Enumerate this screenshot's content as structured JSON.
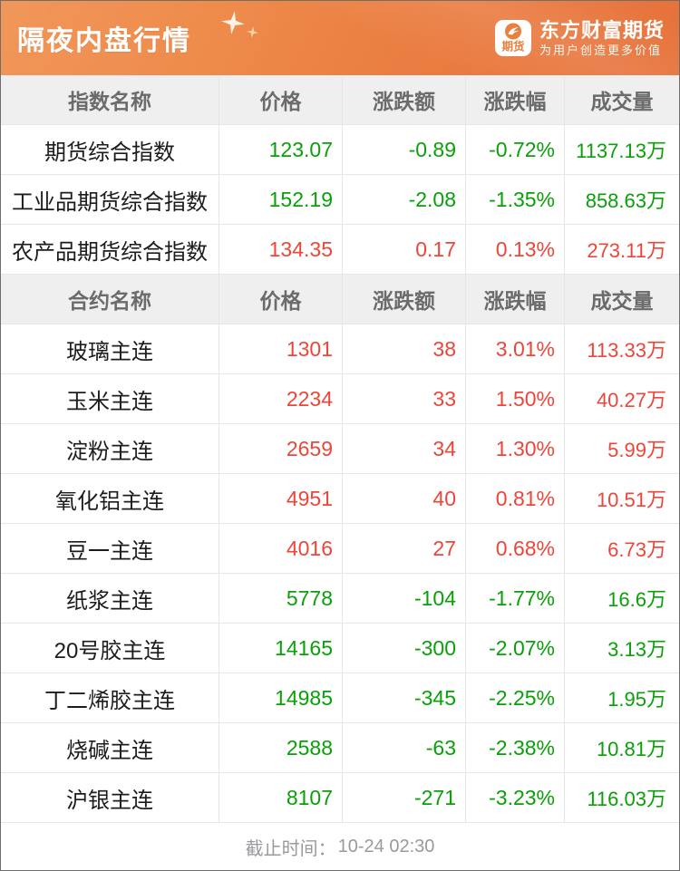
{
  "page": {
    "title": "隔夜内盘行情",
    "brand": {
      "name": "东方财富期货",
      "slogan": "为用户创造更多价值",
      "badge_text": "期货"
    },
    "footer": {
      "label": "截止时间：",
      "time": "10-24 02:30"
    }
  },
  "colors": {
    "up": "#ee4539",
    "down": "#09a009",
    "header_orange_start": "#f1975a",
    "header_orange_end": "#e6713a",
    "table_head_bg": "#efefef"
  },
  "icons": {
    "brand_badge": "futures-app-logo",
    "decor": "sparkle-stars"
  },
  "index_table": {
    "columns": [
      "指数名称",
      "价格",
      "涨跌额",
      "涨跌幅",
      "成交量"
    ],
    "rows": [
      {
        "name": "期货综合指数",
        "price": "123.07",
        "change": "-0.89",
        "pct": "-0.72%",
        "volume": "1137.13万",
        "trend": "down"
      },
      {
        "name": "工业品期货综合指数",
        "price": "152.19",
        "change": "-2.08",
        "pct": "-1.35%",
        "volume": "858.63万",
        "trend": "down"
      },
      {
        "name": "农产品期货综合指数",
        "price": "134.35",
        "change": "0.17",
        "pct": "0.13%",
        "volume": "273.11万",
        "trend": "up"
      }
    ]
  },
  "contract_table": {
    "columns": [
      "合约名称",
      "价格",
      "涨跌额",
      "涨跌幅",
      "成交量"
    ],
    "rows": [
      {
        "name": "玻璃主连",
        "price": "1301",
        "change": "38",
        "pct": "3.01%",
        "volume": "113.33万",
        "trend": "up"
      },
      {
        "name": "玉米主连",
        "price": "2234",
        "change": "33",
        "pct": "1.50%",
        "volume": "40.27万",
        "trend": "up"
      },
      {
        "name": "淀粉主连",
        "price": "2659",
        "change": "34",
        "pct": "1.30%",
        "volume": "5.99万",
        "trend": "up"
      },
      {
        "name": "氧化铝主连",
        "price": "4951",
        "change": "40",
        "pct": "0.81%",
        "volume": "10.51万",
        "trend": "up"
      },
      {
        "name": "豆一主连",
        "price": "4016",
        "change": "27",
        "pct": "0.68%",
        "volume": "6.73万",
        "trend": "up"
      },
      {
        "name": "纸浆主连",
        "price": "5778",
        "change": "-104",
        "pct": "-1.77%",
        "volume": "16.6万",
        "trend": "down"
      },
      {
        "name": "20号胶主连",
        "price": "14165",
        "change": "-300",
        "pct": "-2.07%",
        "volume": "3.13万",
        "trend": "down"
      },
      {
        "name": "丁二烯胶主连",
        "price": "14985",
        "change": "-345",
        "pct": "-2.25%",
        "volume": "1.95万",
        "trend": "down"
      },
      {
        "name": "烧碱主连",
        "price": "2588",
        "change": "-63",
        "pct": "-2.38%",
        "volume": "10.81万",
        "trend": "down"
      },
      {
        "name": "沪银主连",
        "price": "8107",
        "change": "-271",
        "pct": "-3.23%",
        "volume": "116.03万",
        "trend": "down"
      }
    ]
  }
}
